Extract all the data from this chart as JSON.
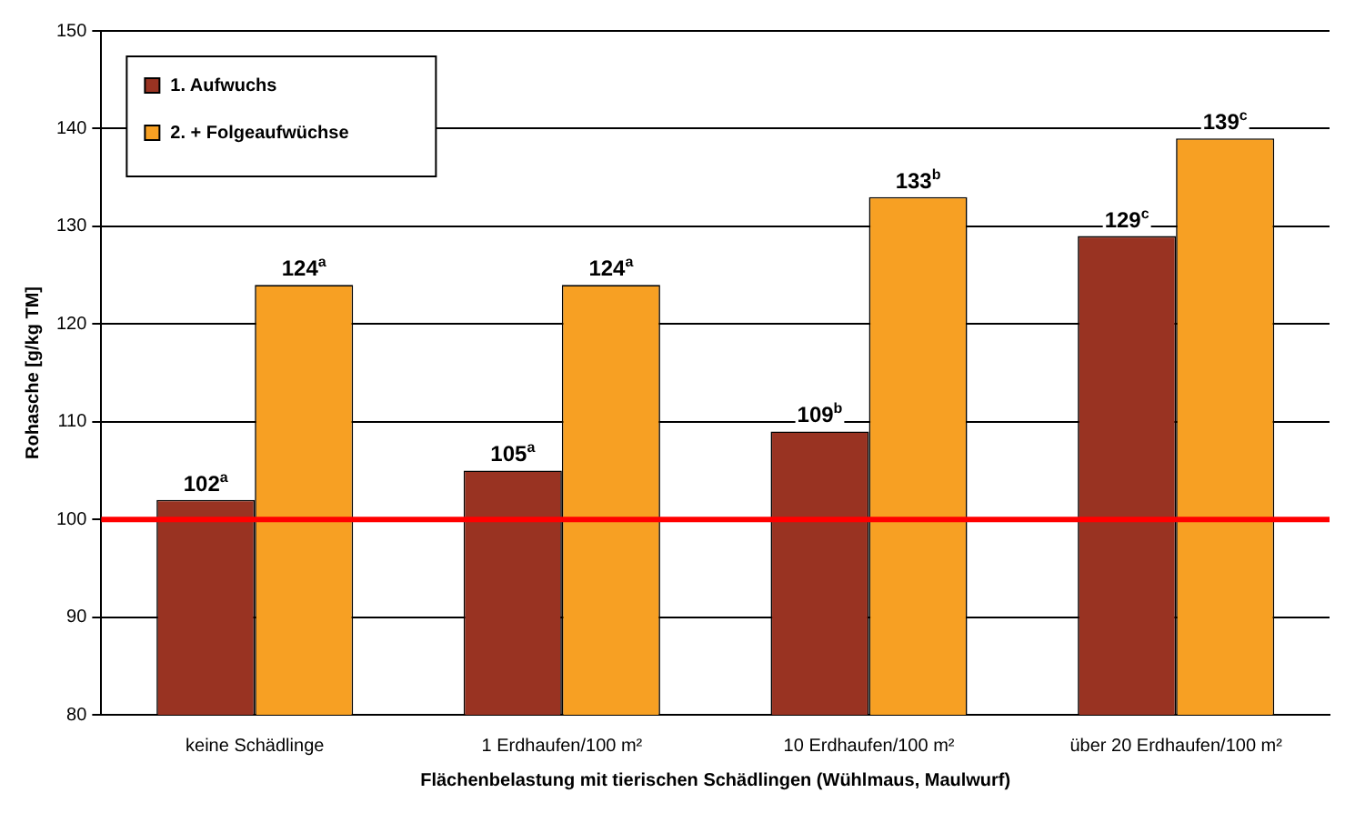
{
  "chart_data": {
    "type": "bar",
    "xlabel": "Flächenbelastung mit tierischen Schädlingen (Wühlmaus, Maulwurf)",
    "ylabel": "Rohasche [g/kg TM]",
    "categories": [
      "keine Schädlinge",
      "1 Erdhaufen/100 m²",
      "10 Erdhaufen/100 m²",
      "über 20 Erdhaufen/100 m²"
    ],
    "series": [
      {
        "name": "1. Aufwuchs",
        "color": "#993322",
        "values": [
          102,
          105,
          109,
          129
        ],
        "value_labels": [
          "102$^{a}$",
          "105$^{a}$",
          "109$^{b}$",
          "129$^{c}$"
        ]
      },
      {
        "name": "2. + Folgeaufwüchse",
        "color": "#f7a023",
        "values": [
          124,
          124,
          133,
          139
        ],
        "value_labels": [
          "124$^{a}$",
          "124$^{a}$",
          "133$^{b}$",
          "139$^{c}$"
        ]
      }
    ],
    "ylim": [
      80,
      150
    ],
    "yticks": [
      80,
      90,
      100,
      110,
      120,
      130,
      140,
      150
    ],
    "grid": "y",
    "legend": "top left",
    "ref_lines": [
      {
        "axis": "y",
        "value": 100,
        "color": "#ff0000"
      }
    ]
  }
}
